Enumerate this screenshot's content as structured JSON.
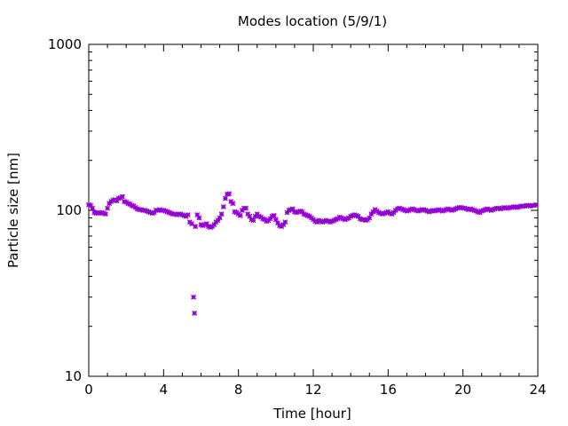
{
  "chart_data": {
    "type": "scatter",
    "title": "Modes location (5/9/1)",
    "xlabel": "Time [hour]",
    "ylabel": "Particle size [nm]",
    "xlim": [
      0,
      24
    ],
    "ylim": [
      10,
      1000
    ],
    "yscale": "log",
    "grid": false,
    "legend": "none",
    "marker_color": "#9400d3",
    "x_ticks": [
      0,
      4,
      8,
      12,
      16,
      20,
      24
    ],
    "x_tick_labels": [
      "0",
      "4",
      "8",
      "12",
      "16",
      "20",
      "24"
    ],
    "y_ticks": [
      10,
      100,
      1000
    ],
    "y_tick_labels": [
      "10",
      "100",
      "1000"
    ],
    "points": [
      [
        0.0,
        108
      ],
      [
        0.1,
        107
      ],
      [
        0.2,
        103
      ],
      [
        0.3,
        97
      ],
      [
        0.4,
        96
      ],
      [
        0.5,
        97
      ],
      [
        0.6,
        96
      ],
      [
        0.7,
        97
      ],
      [
        0.8,
        96
      ],
      [
        0.9,
        95
      ],
      [
        1.0,
        103
      ],
      [
        1.1,
        110
      ],
      [
        1.2,
        113
      ],
      [
        1.3,
        115
      ],
      [
        1.4,
        116
      ],
      [
        1.5,
        114
      ],
      [
        1.6,
        118
      ],
      [
        1.7,
        119
      ],
      [
        1.8,
        121
      ],
      [
        1.9,
        113
      ],
      [
        2.0,
        112
      ],
      [
        2.1,
        110
      ],
      [
        2.2,
        109
      ],
      [
        2.3,
        107
      ],
      [
        2.4,
        106
      ],
      [
        2.5,
        104
      ],
      [
        2.6,
        102
      ],
      [
        2.7,
        101
      ],
      [
        2.8,
        101
      ],
      [
        2.9,
        100
      ],
      [
        3.0,
        100
      ],
      [
        3.1,
        99
      ],
      [
        3.2,
        98
      ],
      [
        3.3,
        97
      ],
      [
        3.4,
        96
      ],
      [
        3.5,
        97
      ],
      [
        3.6,
        100
      ],
      [
        3.7,
        100
      ],
      [
        3.8,
        101
      ],
      [
        3.9,
        100
      ],
      [
        4.0,
        100
      ],
      [
        4.1,
        99
      ],
      [
        4.2,
        98
      ],
      [
        4.3,
        97
      ],
      [
        4.4,
        96
      ],
      [
        4.5,
        95
      ],
      [
        4.6,
        95
      ],
      [
        4.7,
        94
      ],
      [
        4.8,
        95
      ],
      [
        4.9,
        95
      ],
      [
        5.0,
        94
      ],
      [
        5.1,
        93
      ],
      [
        5.2,
        92
      ],
      [
        5.3,
        94
      ],
      [
        5.4,
        85
      ],
      [
        5.5,
        83
      ],
      [
        5.6,
        30
      ],
      [
        5.65,
        24
      ],
      [
        5.7,
        80
      ],
      [
        5.8,
        94
      ],
      [
        5.9,
        90
      ],
      [
        6.0,
        82
      ],
      [
        6.1,
        81
      ],
      [
        6.2,
        82
      ],
      [
        6.3,
        83
      ],
      [
        6.4,
        80
      ],
      [
        6.5,
        79
      ],
      [
        6.6,
        80
      ],
      [
        6.7,
        82
      ],
      [
        6.8,
        85
      ],
      [
        6.9,
        87
      ],
      [
        7.0,
        90
      ],
      [
        7.1,
        95
      ],
      [
        7.2,
        105
      ],
      [
        7.3,
        118
      ],
      [
        7.4,
        125
      ],
      [
        7.5,
        126
      ],
      [
        7.6,
        113
      ],
      [
        7.7,
        110
      ],
      [
        7.8,
        98
      ],
      [
        7.9,
        97
      ],
      [
        8.0,
        95
      ],
      [
        8.1,
        93
      ],
      [
        8.2,
        100
      ],
      [
        8.3,
        103
      ],
      [
        8.4,
        103
      ],
      [
        8.5,
        95
      ],
      [
        8.6,
        92
      ],
      [
        8.7,
        88
      ],
      [
        8.8,
        87
      ],
      [
        8.9,
        92
      ],
      [
        9.0,
        95
      ],
      [
        9.1,
        92
      ],
      [
        9.2,
        91
      ],
      [
        9.3,
        89
      ],
      [
        9.4,
        88
      ],
      [
        9.5,
        86
      ],
      [
        9.6,
        87
      ],
      [
        9.7,
        89
      ],
      [
        9.8,
        92
      ],
      [
        9.9,
        93
      ],
      [
        10.0,
        88
      ],
      [
        10.1,
        84
      ],
      [
        10.2,
        81
      ],
      [
        10.3,
        80
      ],
      [
        10.4,
        82
      ],
      [
        10.5,
        85
      ],
      [
        10.6,
        97
      ],
      [
        10.7,
        100
      ],
      [
        10.8,
        101
      ],
      [
        10.9,
        102
      ],
      [
        11.0,
        98
      ],
      [
        11.1,
        97
      ],
      [
        11.2,
        98
      ],
      [
        11.3,
        99
      ],
      [
        11.4,
        98
      ],
      [
        11.5,
        95
      ],
      [
        11.6,
        94
      ],
      [
        11.7,
        93
      ],
      [
        11.8,
        92
      ],
      [
        11.9,
        90
      ],
      [
        12.0,
        88
      ],
      [
        12.1,
        86
      ],
      [
        12.2,
        85
      ],
      [
        12.3,
        87
      ],
      [
        12.4,
        86
      ],
      [
        12.5,
        85
      ],
      [
        12.6,
        86
      ],
      [
        12.7,
        87
      ],
      [
        12.8,
        86
      ],
      [
        12.9,
        85
      ],
      [
        13.0,
        86
      ],
      [
        13.1,
        87
      ],
      [
        13.2,
        88
      ],
      [
        13.3,
        89
      ],
      [
        13.4,
        91
      ],
      [
        13.5,
        90
      ],
      [
        13.6,
        89
      ],
      [
        13.7,
        88
      ],
      [
        13.8,
        89
      ],
      [
        13.9,
        90
      ],
      [
        14.0,
        92
      ],
      [
        14.1,
        93
      ],
      [
        14.2,
        94
      ],
      [
        14.3,
        93
      ],
      [
        14.4,
        92
      ],
      [
        14.5,
        89
      ],
      [
        14.6,
        88
      ],
      [
        14.7,
        88
      ],
      [
        14.8,
        87
      ],
      [
        14.9,
        88
      ],
      [
        15.0,
        90
      ],
      [
        15.1,
        95
      ],
      [
        15.2,
        98
      ],
      [
        15.3,
        101
      ],
      [
        15.4,
        99
      ],
      [
        15.5,
        97
      ],
      [
        15.6,
        96
      ],
      [
        15.7,
        95
      ],
      [
        15.8,
        96
      ],
      [
        15.9,
        97
      ],
      [
        16.0,
        98
      ],
      [
        16.1,
        96
      ],
      [
        16.2,
        95
      ],
      [
        16.3,
        97
      ],
      [
        16.4,
        100
      ],
      [
        16.5,
        102
      ],
      [
        16.6,
        103
      ],
      [
        16.7,
        102
      ],
      [
        16.8,
        101
      ],
      [
        16.9,
        100
      ],
      [
        17.0,
        99
      ],
      [
        17.1,
        100
      ],
      [
        17.2,
        101
      ],
      [
        17.3,
        102
      ],
      [
        17.4,
        101
      ],
      [
        17.5,
        100
      ],
      [
        17.6,
        99
      ],
      [
        17.7,
        100
      ],
      [
        17.8,
        101
      ],
      [
        17.9,
        101
      ],
      [
        18.0,
        100
      ],
      [
        18.1,
        99
      ],
      [
        18.2,
        98
      ],
      [
        18.3,
        99
      ],
      [
        18.4,
        100
      ],
      [
        18.5,
        99
      ],
      [
        18.6,
        100
      ],
      [
        18.7,
        101
      ],
      [
        18.8,
        100
      ],
      [
        18.9,
        99
      ],
      [
        19.0,
        100
      ],
      [
        19.1,
        101
      ],
      [
        19.2,
        102
      ],
      [
        19.3,
        101
      ],
      [
        19.4,
        100
      ],
      [
        19.5,
        101
      ],
      [
        19.6,
        102
      ],
      [
        19.7,
        103
      ],
      [
        19.8,
        104
      ],
      [
        19.9,
        104
      ],
      [
        20.0,
        103
      ],
      [
        20.1,
        103
      ],
      [
        20.2,
        102
      ],
      [
        20.3,
        101
      ],
      [
        20.4,
        102
      ],
      [
        20.5,
        101
      ],
      [
        20.6,
        100
      ],
      [
        20.7,
        99
      ],
      [
        20.8,
        98
      ],
      [
        20.9,
        97
      ],
      [
        21.0,
        99
      ],
      [
        21.1,
        100
      ],
      [
        21.2,
        101
      ],
      [
        21.3,
        102
      ],
      [
        21.4,
        101
      ],
      [
        21.5,
        100
      ],
      [
        21.6,
        101
      ],
      [
        21.7,
        102
      ],
      [
        21.8,
        103
      ],
      [
        21.9,
        103
      ],
      [
        22.0,
        102
      ],
      [
        22.1,
        103
      ],
      [
        22.2,
        104
      ],
      [
        22.3,
        103
      ],
      [
        22.4,
        103
      ],
      [
        22.5,
        104
      ],
      [
        22.6,
        104
      ],
      [
        22.7,
        105
      ],
      [
        22.8,
        105
      ],
      [
        22.9,
        104
      ],
      [
        23.0,
        105
      ],
      [
        23.1,
        106
      ],
      [
        23.2,
        106
      ],
      [
        23.3,
        106
      ],
      [
        23.4,
        107
      ],
      [
        23.5,
        107
      ],
      [
        23.6,
        106
      ],
      [
        23.7,
        107
      ],
      [
        23.8,
        107
      ],
      [
        23.9,
        108
      ]
    ]
  }
}
